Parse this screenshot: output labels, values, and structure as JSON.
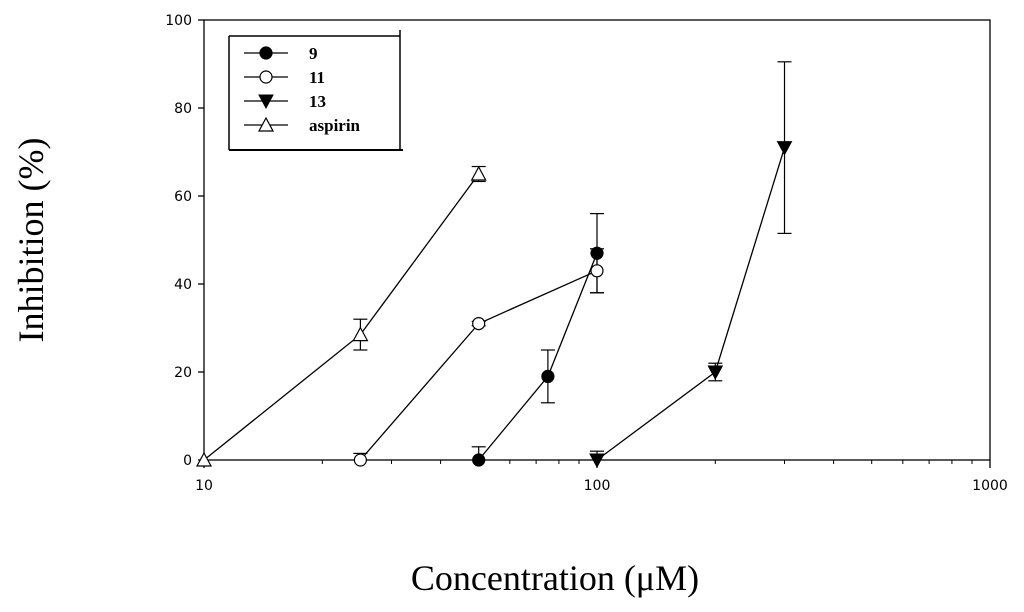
{
  "chart_data": {
    "type": "line",
    "xlabel": "Concentration (μM)",
    "ylabel": "Inhibition (%)",
    "xscale": "log",
    "xlim": [
      10,
      1000
    ],
    "ylim": [
      0,
      100
    ],
    "x_ticks": [
      "10",
      "100",
      "1000"
    ],
    "y_ticks": [
      "0",
      "20",
      "40",
      "60",
      "80",
      "100"
    ],
    "legend_position": "top-left",
    "grid": false,
    "series": [
      {
        "name": "9",
        "marker": "filled-circle",
        "points": [
          {
            "x": 50,
            "y": 0,
            "err": 3
          },
          {
            "x": 75,
            "y": 19,
            "err": 6
          },
          {
            "x": 100,
            "y": 47,
            "err": 9
          }
        ]
      },
      {
        "name": "11",
        "marker": "open-circle",
        "points": [
          {
            "x": 25,
            "y": 0,
            "err": 1.5
          },
          {
            "x": 50,
            "y": 31,
            "err": 0.5
          },
          {
            "x": 100,
            "y": 43,
            "err": 5
          }
        ]
      },
      {
        "name": "13",
        "marker": "filled-triangle-down",
        "points": [
          {
            "x": 100,
            "y": 0,
            "err": 2
          },
          {
            "x": 200,
            "y": 20,
            "err": 2
          },
          {
            "x": 300,
            "y": 71,
            "err": 19.5
          }
        ]
      },
      {
        "name": "aspirin",
        "marker": "open-triangle-up",
        "points": [
          {
            "x": 10,
            "y": 0,
            "err": 0
          },
          {
            "x": 25,
            "y": 28.5,
            "err": 3.5
          },
          {
            "x": 50,
            "y": 65,
            "err": 1.7
          }
        ]
      }
    ]
  }
}
